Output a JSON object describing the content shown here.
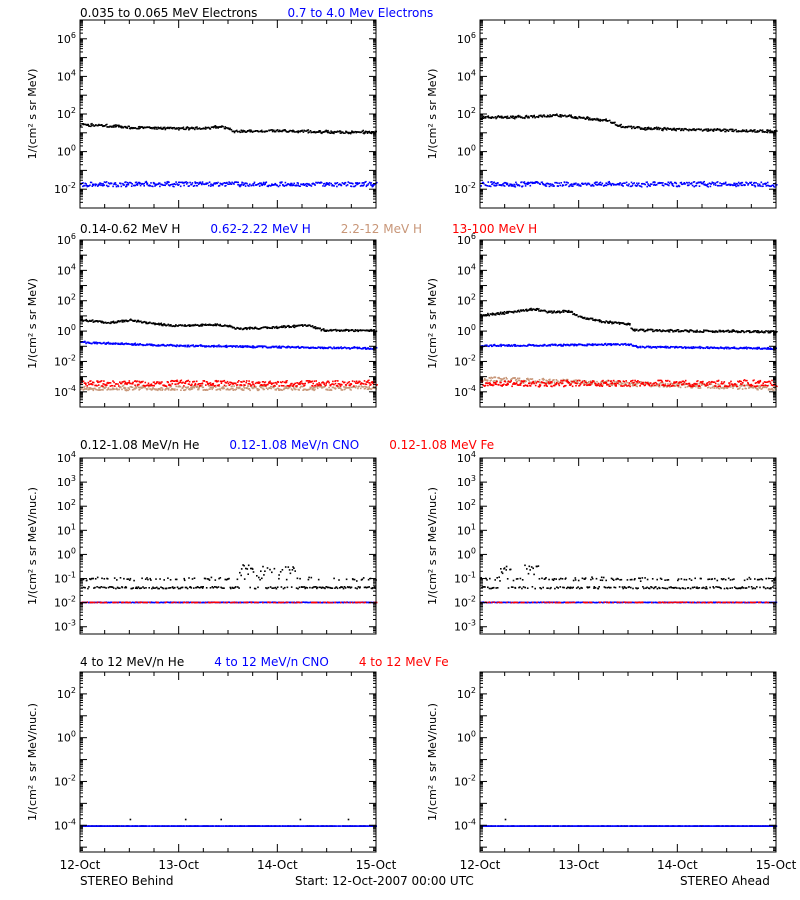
{
  "footer": {
    "left": "STEREO Behind",
    "center": "Start: 12-Oct-2007 00:00 UTC",
    "right": "STEREO Ahead"
  },
  "colors": {
    "black": "#000000",
    "blue": "#0000ff",
    "tan": "#c89678",
    "red": "#ff0000"
  },
  "chart_data": [
    {
      "row": 1,
      "type": "scatter",
      "titles": [
        {
          "text": "0.035 to 0.065 MeV Electrons",
          "color": "#000000"
        },
        {
          "text": "0.7 to 4.0 Mev Electrons",
          "color": "#0000ff"
        }
      ],
      "ylabel": "1/(cm² s sr MeV)",
      "yscale": "log",
      "ylim": [
        0.001,
        10000000
      ],
      "yticks": [
        {
          "e": -2,
          "label": "10-2"
        },
        {
          "e": 0,
          "label": "100"
        },
        {
          "e": 2,
          "label": "102"
        },
        {
          "e": 4,
          "label": "104"
        },
        {
          "e": 6,
          "label": "106"
        }
      ],
      "xticks": [
        "12-Oct",
        "13-Oct",
        "14-Oct",
        "15-Oct"
      ],
      "xlim_days": [
        0,
        3
      ],
      "panels": [
        {
          "spacecraft": "STEREO Behind",
          "series": [
            {
              "name": "0.035 to 0.065 MeV Electrons",
              "color": "#000000",
              "spread": 0.06,
              "profile": [
                [
                  0,
                  30
                ],
                [
                  0.3,
                  25
                ],
                [
                  0.6,
                  20
                ],
                [
                  1,
                  18
                ],
                [
                  1.3,
                  20
                ],
                [
                  1.45,
                  22
                ],
                [
                  1.55,
                  13
                ],
                [
                  2,
                  14
                ],
                [
                  2.5,
                  12
                ],
                [
                  3,
                  12
                ]
              ]
            },
            {
              "name": "0.7 to 4.0 Mev Electrons",
              "color": "#0000ff",
              "spread": 0.12,
              "profile": [
                [
                  0,
                  0.02
                ],
                [
                  3,
                  0.02
                ]
              ]
            }
          ]
        },
        {
          "spacecraft": "STEREO Ahead",
          "series": [
            {
              "name": "0.035 to 0.065 MeV Electrons",
              "color": "#000000",
              "spread": 0.06,
              "profile": [
                [
                  0,
                  70
                ],
                [
                  0.4,
                  75
                ],
                [
                  0.8,
                  90
                ],
                [
                  1,
                  70
                ],
                [
                  1.3,
                  50
                ],
                [
                  1.4,
                  25
                ],
                [
                  1.7,
                  18
                ],
                [
                  2.2,
                  16
                ],
                [
                  3,
                  13
                ]
              ]
            },
            {
              "name": "0.7 to 4.0 Mev Electrons",
              "color": "#0000ff",
              "spread": 0.12,
              "profile": [
                [
                  0,
                  0.02
                ],
                [
                  3,
                  0.02
                ]
              ]
            }
          ]
        }
      ]
    },
    {
      "row": 2,
      "type": "scatter",
      "titles": [
        {
          "text": "0.14-0.62 MeV H",
          "color": "#000000"
        },
        {
          "text": "0.62-2.22 MeV H",
          "color": "#0000ff"
        },
        {
          "text": "2.2-12 MeV H",
          "color": "#c89678"
        },
        {
          "text": "13-100 MeV H",
          "color": "#ff0000"
        }
      ],
      "ylabel": "1/(cm² s sr MeV)",
      "yscale": "log",
      "ylim": [
        1e-05,
        1000000
      ],
      "yticks": [
        {
          "e": -4,
          "label": "10-4"
        },
        {
          "e": -2,
          "label": "10-2"
        },
        {
          "e": 0,
          "label": "100"
        },
        {
          "e": 2,
          "label": "102"
        },
        {
          "e": 4,
          "label": "104"
        },
        {
          "e": 6,
          "label": "106"
        }
      ],
      "xticks": [
        "12-Oct",
        "13-Oct",
        "14-Oct",
        "15-Oct"
      ],
      "xlim_days": [
        0,
        3
      ],
      "panels": [
        {
          "spacecraft": "STEREO Behind",
          "series": [
            {
              "name": "0.14-0.62 MeV H",
              "color": "#000000",
              "spread": 0.06,
              "profile": [
                [
                  0,
                  6
                ],
                [
                  0.3,
                  4
                ],
                [
                  0.5,
                  6
                ],
                [
                  0.8,
                  3
                ],
                [
                  1,
                  2.5
                ],
                [
                  1.4,
                  3
                ],
                [
                  1.6,
                  1.6
                ],
                [
                  2,
                  2
                ],
                [
                  2.3,
                  2.8
                ],
                [
                  2.45,
                  1.3
                ],
                [
                  3,
                  1.2
                ]
              ]
            },
            {
              "name": "0.62-2.22 MeV H",
              "color": "#0000ff",
              "spread": 0.05,
              "profile": [
                [
                  0,
                  0.2
                ],
                [
                  1,
                  0.12
                ],
                [
                  2,
                  0.1
                ],
                [
                  3,
                  0.08
                ]
              ]
            },
            {
              "name": "2.2-12 MeV H",
              "color": "#c89678",
              "spread": 0.15,
              "profile": [
                [
                  0,
                  0.0002
                ],
                [
                  3,
                  0.0002
                ]
              ]
            },
            {
              "name": "13-100 MeV H",
              "color": "#ff0000",
              "spread": 0.18,
              "profile": [
                [
                  0,
                  0.0004
                ],
                [
                  3,
                  0.0004
                ]
              ]
            }
          ]
        },
        {
          "spacecraft": "STEREO Ahead",
          "series": [
            {
              "name": "0.14-0.62 MeV H",
              "color": "#000000",
              "spread": 0.07,
              "profile": [
                [
                  0,
                  12
                ],
                [
                  0.3,
                  20
                ],
                [
                  0.55,
                  30
                ],
                [
                  0.7,
                  20
                ],
                [
                  0.9,
                  22
                ],
                [
                  1.0,
                  10
                ],
                [
                  1.2,
                  5
                ],
                [
                  1.35,
                  4
                ],
                [
                  1.5,
                  3
                ],
                [
                  1.55,
                  1.3
                ],
                [
                  1.9,
                  1.2
                ],
                [
                  3,
                  1
                ]
              ]
            },
            {
              "name": "0.62-2.22 MeV H",
              "color": "#0000ff",
              "spread": 0.05,
              "profile": [
                [
                  0,
                  0.12
                ],
                [
                  1.5,
                  0.15
                ],
                [
                  1.6,
                  0.1
                ],
                [
                  3,
                  0.08
                ]
              ]
            },
            {
              "name": "2.2-12 MeV H",
              "color": "#c89678",
              "spread": 0.15,
              "profile": [
                [
                  0,
                  0.0008
                ],
                [
                  0.5,
                  0.0006
                ],
                [
                  3,
                  0.0002
                ]
              ]
            },
            {
              "name": "13-100 MeV H",
              "color": "#ff0000",
              "spread": 0.2,
              "profile": [
                [
                  0,
                  0.0004
                ],
                [
                  3,
                  0.0004
                ]
              ]
            }
          ]
        }
      ]
    },
    {
      "row": 3,
      "type": "scatter",
      "titles": [
        {
          "text": "0.12-1.08 MeV/n He",
          "color": "#000000"
        },
        {
          "text": "0.12-1.08 MeV/n CNO",
          "color": "#0000ff"
        },
        {
          "text": "0.12-1.08 MeV Fe",
          "color": "#ff0000"
        }
      ],
      "ylabel": "1/(cm² s sr MeV/nuc.)",
      "yscale": "log",
      "ylim": [
        0.0005,
        10000
      ],
      "yticks": [
        {
          "e": -3,
          "label": "10-3"
        },
        {
          "e": -2,
          "label": "10-2"
        },
        {
          "e": -1,
          "label": "10-1"
        },
        {
          "e": 0,
          "label": "100"
        },
        {
          "e": 1,
          "label": "101"
        },
        {
          "e": 2,
          "label": "102"
        },
        {
          "e": 3,
          "label": "103"
        },
        {
          "e": 4,
          "label": "104"
        }
      ],
      "xticks": [
        "12-Oct",
        "13-Oct",
        "14-Oct",
        "15-Oct"
      ],
      "xlim_days": [
        0,
        3
      ],
      "panels": [
        {
          "spacecraft": "STEREO Behind",
          "series": [
            {
              "name": "0.12-1.08 MeV/n He",
              "color": "#000000",
              "levels": [
                0.045,
                0.1
              ],
              "burst": [
                1.6,
                2.2,
                0.25
              ],
              "spread": 0.04,
              "profile": [
                [
                  0,
                  0.045
                ],
                [
                  3,
                  0.045
                ]
              ]
            },
            {
              "name": "0.12-1.08 MeV/n CNO",
              "color": "#0000ff",
              "spread": 0.01,
              "profile": [
                [
                  0,
                  0.011
                ],
                [
                  3,
                  0.011
                ]
              ]
            },
            {
              "name": "0.12-1.08 MeV Fe",
              "color": "#ff0000",
              "spread": 0.01,
              "sparse": true,
              "profile": [
                [
                  0,
                  0.011
                ],
                [
                  3,
                  0.011
                ]
              ]
            }
          ]
        },
        {
          "spacecraft": "STEREO Ahead",
          "series": [
            {
              "name": "0.12-1.08 MeV/n He",
              "color": "#000000",
              "levels": [
                0.045,
                0.1
              ],
              "burst": [
                0.2,
                0.6,
                0.25
              ],
              "spread": 0.04,
              "profile": [
                [
                  0,
                  0.045
                ],
                [
                  3,
                  0.045
                ]
              ]
            },
            {
              "name": "0.12-1.08 MeV/n CNO",
              "color": "#0000ff",
              "spread": 0.01,
              "profile": [
                [
                  0,
                  0.011
                ],
                [
                  3,
                  0.011
                ]
              ]
            },
            {
              "name": "0.12-1.08 MeV Fe",
              "color": "#ff0000",
              "spread": 0.01,
              "sparse": true,
              "profile": [
                [
                  0,
                  0.011
                ],
                [
                  3,
                  0.011
                ]
              ]
            }
          ]
        }
      ]
    },
    {
      "row": 4,
      "type": "scatter",
      "titles": [
        {
          "text": "4 to 12 MeV/n He",
          "color": "#000000"
        },
        {
          "text": "4 to 12 MeV/n CNO",
          "color": "#0000ff"
        },
        {
          "text": "4 to 12 MeV Fe",
          "color": "#ff0000"
        }
      ],
      "ylabel": "1/(cm² s sr MeV/nuc.)",
      "yscale": "log",
      "ylim": [
        6e-06,
        1000
      ],
      "yticks": [
        {
          "e": -4,
          "label": "10-4"
        },
        {
          "e": -2,
          "label": "10-2"
        },
        {
          "e": 0,
          "label": "100"
        },
        {
          "e": 2,
          "label": "102"
        }
      ],
      "xticks": [
        "12-Oct",
        "13-Oct",
        "14-Oct",
        "15-Oct"
      ],
      "xlim_days": [
        0,
        3
      ],
      "panels": [
        {
          "spacecraft": "STEREO Behind",
          "series": [
            {
              "name": "4 to 12 MeV/n He",
              "color": "#000000",
              "spread": 0.0,
              "sparse": true,
              "occasional": 0.0002,
              "profile": [
                [
                  0,
                  0.0001
                ],
                [
                  3,
                  0.0001
                ]
              ]
            },
            {
              "name": "4 to 12 MeV/n CNO",
              "color": "#0000ff",
              "spread": 0.0,
              "profile": [
                [
                  0,
                  0.0001
                ],
                [
                  3,
                  0.0001
                ]
              ]
            }
          ]
        },
        {
          "spacecraft": "STEREO Ahead",
          "series": [
            {
              "name": "4 to 12 MeV/n He",
              "color": "#000000",
              "spread": 0.0,
              "sparse": true,
              "occasional": 0.0002,
              "profile": [
                [
                  0,
                  0.0001
                ],
                [
                  3,
                  0.0001
                ]
              ]
            },
            {
              "name": "4 to 12 MeV/n CNO",
              "color": "#0000ff",
              "spread": 0.0,
              "profile": [
                [
                  0,
                  0.0001
                ],
                [
                  3,
                  0.0001
                ]
              ]
            }
          ]
        }
      ]
    }
  ]
}
